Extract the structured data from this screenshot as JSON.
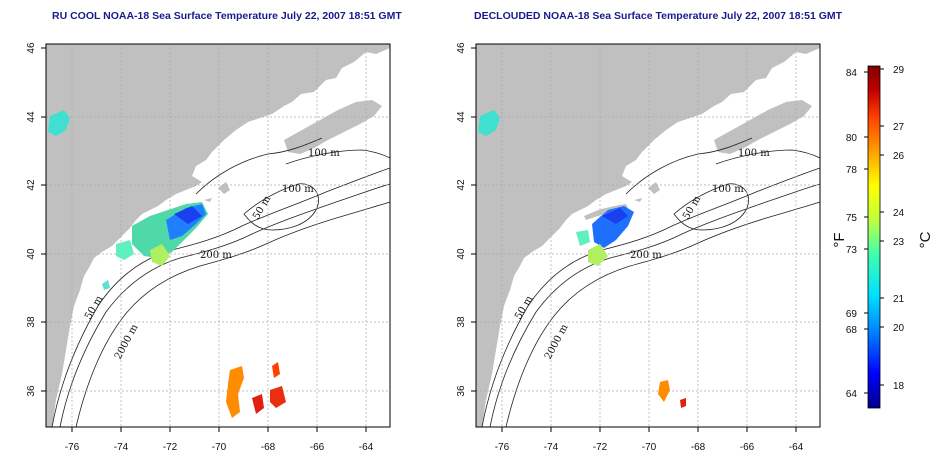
{
  "titles": {
    "left": "RU COOL NOAA-18 Sea Surface Temperature July 22, 2007 18:51 GMT",
    "right": "DECLOUDED NOAA-18 Sea Surface Temperature July 22, 2007 18:51 GMT"
  },
  "axes": {
    "x_ticks": [
      "-76",
      "-74",
      "-72",
      "-70",
      "-68",
      "-66",
      "-64"
    ],
    "y_ticks": [
      "46",
      "44",
      "42",
      "40",
      "38",
      "36"
    ]
  },
  "contour_labels": [
    "100 m",
    "100 m",
    "50 m",
    "200 m",
    "50 m",
    "2000 m"
  ],
  "colorbar": {
    "fahrenheit_ticks": [
      "84",
      "80",
      "78",
      "75",
      "73",
      "69",
      "68",
      "64"
    ],
    "celsius_ticks": [
      "29",
      "27",
      "26",
      "24",
      "23",
      "21",
      "20",
      "18"
    ],
    "unit_left": "°F",
    "unit_right": "°C",
    "range_c": [
      17,
      29
    ],
    "colors": [
      "#00008b",
      "#0000ff",
      "#0080ff",
      "#00e0ff",
      "#40ffb0",
      "#c0ff40",
      "#ffff00",
      "#ffa000",
      "#ff4000",
      "#c00000",
      "#800000"
    ]
  },
  "colors": {
    "land": "#c0c0c0",
    "ocean": "#ffffff",
    "title": "#1a1a8c",
    "grid": "#aaaaaa"
  }
}
